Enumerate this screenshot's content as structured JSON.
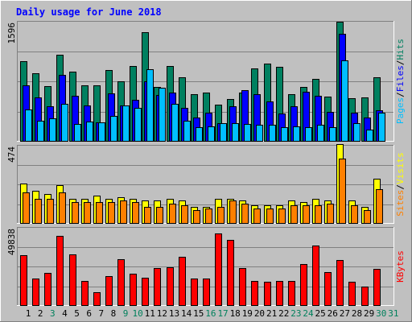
{
  "chart_data": {
    "type": "bar",
    "title": "Daily usage for June 2018",
    "days": [
      "1",
      "2",
      "3",
      "4",
      "5",
      "6",
      "7",
      "8",
      "9",
      "10",
      "11",
      "12",
      "13",
      "14",
      "15",
      "16",
      "17",
      "18",
      "19",
      "20",
      "21",
      "22",
      "23",
      "24",
      "25",
      "26",
      "27",
      "28",
      "29",
      "30",
      "31"
    ],
    "weekend_days": [
      "3",
      "9",
      "10",
      "16",
      "17",
      "23",
      "24",
      "30",
      "31"
    ],
    "panels": [
      {
        "id": "hits-panel",
        "max_label": "1596",
        "ylim": [
          0,
          1596
        ],
        "legend": [
          {
            "text": "Pages",
            "color": "#00bfff"
          },
          {
            "text": "Files",
            "color": "#0000ff"
          },
          {
            "text": "Hits",
            "color": "#008060"
          }
        ],
        "series": [
          {
            "name": "Hits",
            "color": "#008060",
            "values": [
              1060,
              900,
              730,
              1150,
              930,
              750,
              750,
              950,
              800,
              1000,
              1450,
              720,
              1000,
              850,
              630,
              650,
              490,
              560,
              650,
              970,
              1030,
              990,
              630,
              720,
              830,
              600,
              1590,
              570,
              580,
              850,
              0
            ]
          },
          {
            "name": "Files",
            "color": "#0000ff",
            "values": [
              740,
              580,
              470,
              880,
              610,
              480,
              260,
              640,
              480,
              550,
              800,
              620,
              650,
              450,
              320,
              380,
              250,
              470,
              680,
              630,
              530,
              370,
              470,
              660,
              610,
              390,
              1430,
              380,
              320,
              420,
              0
            ]
          },
          {
            "name": "Pages",
            "color": "#00bfff",
            "values": [
              430,
              280,
              310,
              500,
              230,
              270,
              260,
              340,
              480,
              450,
              960,
              710,
              500,
              280,
              190,
              200,
              240,
              240,
              230,
              220,
              220,
              190,
              200,
              190,
              220,
              190,
              1070,
              240,
              160,
              380,
              0
            ]
          }
        ]
      },
      {
        "id": "visits-panel",
        "max_label": "474",
        "ylim": [
          0,
          474
        ],
        "legend": [
          {
            "text": "Sites",
            "color": "#ff8000"
          },
          {
            "text": "Visits",
            "color": "#ffff00"
          }
        ],
        "series": [
          {
            "name": "Visits",
            "color": "#ffff00",
            "values": [
              240,
              200,
              180,
              230,
              150,
              150,
              170,
              150,
              160,
              150,
              140,
              140,
              150,
              140,
              100,
              100,
              150,
              150,
              140,
              110,
              110,
              110,
              140,
              130,
              150,
              140,
              480,
              140,
              100,
              270,
              0
            ]
          },
          {
            "name": "Sites",
            "color": "#ff8000",
            "values": [
              190,
              150,
              150,
              190,
              130,
              130,
              130,
              130,
              140,
              130,
              100,
              100,
              120,
              110,
              80,
              90,
              100,
              140,
              120,
              90,
              90,
              90,
              110,
              110,
              110,
              120,
              390,
              110,
              80,
              210,
              0
            ]
          }
        ]
      },
      {
        "id": "kbytes-panel",
        "max_label": "49838",
        "ylim": [
          0,
          49838
        ],
        "legend": [
          {
            "text": "KBytes",
            "color": "#ff0000"
          }
        ],
        "series": [
          {
            "name": "KBytes",
            "color": "#ff0000",
            "values": [
              32000,
              17300,
              20700,
              44400,
              32400,
              15900,
              8600,
              18800,
              29300,
              20200,
              17600,
              23700,
              24400,
              31000,
              17300,
              17400,
              45700,
              41900,
              23700,
              15600,
              15200,
              15600,
              15900,
              26500,
              38300,
              21500,
              29000,
              15300,
              12300,
              23300,
              0
            ]
          }
        ]
      }
    ]
  }
}
